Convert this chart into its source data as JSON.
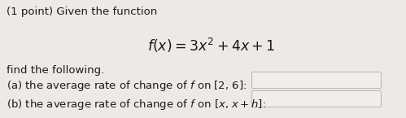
{
  "background_color": "#edeae5",
  "title_line": "(1 point) Given the function",
  "formula": "$f(x) = 3x^2 + 4x + 1$",
  "subtext": "find the following.",
  "part_a_label": "(a) the average rate of change of $f$ on [2, 6]:",
  "part_b_label": "(b) the average rate of change of $f$ on [$x$, $x + h$]:",
  "text_color": "#1a1a1a",
  "font_size_main": 9.5,
  "font_size_formula": 12.5,
  "box_face_color": "#f2ede8",
  "box_edge_color": "#bbbbbb",
  "fig_width": 4.99,
  "fig_height": 1.45,
  "dpi": 100
}
